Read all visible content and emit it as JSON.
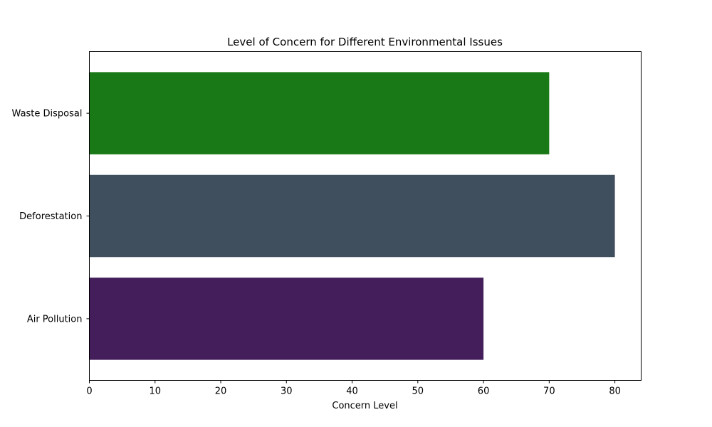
{
  "chart_data": {
    "type": "bar",
    "orientation": "horizontal",
    "title": "Level of Concern for Different Environmental Issues",
    "xlabel": "Concern Level",
    "ylabel": "",
    "categories": [
      "Air Pollution",
      "Deforestation",
      "Waste Disposal"
    ],
    "values": [
      60,
      80,
      70
    ],
    "colors": [
      "#431e5a",
      "#404f5e",
      "#1a7917"
    ],
    "xlim": [
      0,
      84
    ],
    "xticks": [
      0,
      10,
      20,
      30,
      40,
      50,
      60,
      70,
      80
    ],
    "grid": false,
    "legend": "none"
  }
}
